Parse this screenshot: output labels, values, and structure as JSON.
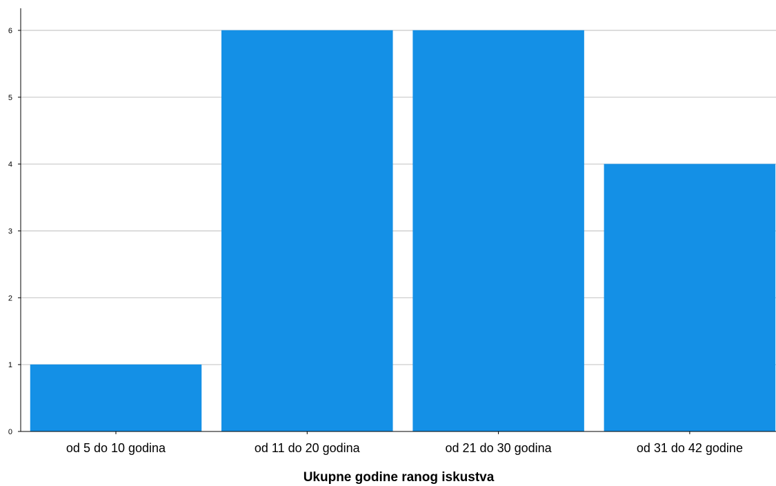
{
  "chart_data": {
    "type": "bar",
    "categories": [
      "od 5 do 10 godina",
      "od 11 do 20 godina",
      "od 21 do 30 godina",
      "od 31 do 42 godine"
    ],
    "values": [
      1,
      6,
      6,
      4
    ],
    "title": "",
    "xlabel": "Ukupne godine ranog iskustva",
    "ylabel": "",
    "ylim": [
      0,
      6
    ],
    "yticks": [
      0,
      1,
      2,
      3,
      4,
      5,
      6
    ],
    "grid": true,
    "legend": "none",
    "colors": {
      "bar": "#1490e6",
      "grid": "#c8c8c8",
      "axis": "#000000"
    }
  }
}
